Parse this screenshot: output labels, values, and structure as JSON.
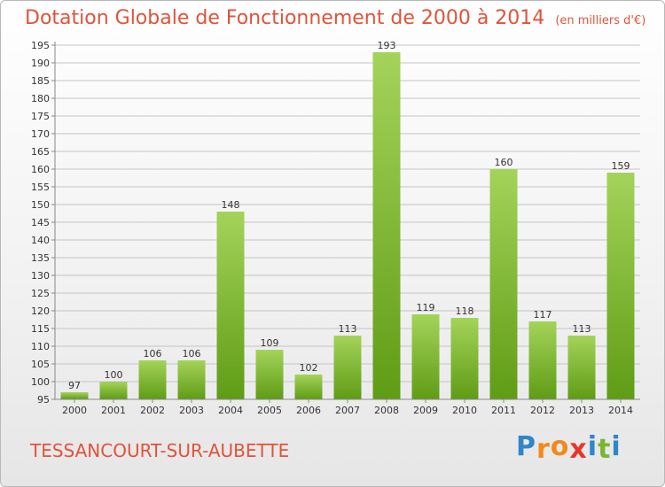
{
  "title": "Dotation Globale de Fonctionnement de 2000 à 2014",
  "unit": "(en milliers d'€)",
  "commune": "TESSANCOURT-SUR-AUBETTE",
  "brand": {
    "letters": [
      "P",
      "r",
      "o",
      "x",
      "i",
      "t",
      "i"
    ],
    "colors": [
      "#2f86c8",
      "#f08a1c",
      "#f08a1c",
      "#e8342b",
      "#2f86c8",
      "#7ab632",
      "#2f86c8"
    ]
  },
  "colors": {
    "title": "#e0533a",
    "bar_light": "#a4d35a",
    "bar_dark": "#5f9c15"
  },
  "chart_data": {
    "type": "bar",
    "categories": [
      "2000",
      "2001",
      "2002",
      "2003",
      "2004",
      "2005",
      "2006",
      "2007",
      "2008",
      "2009",
      "2010",
      "2011",
      "2012",
      "2013",
      "2014"
    ],
    "values": [
      97,
      100,
      106,
      106,
      148,
      109,
      102,
      113,
      193,
      119,
      118,
      160,
      117,
      113,
      159
    ],
    "ylim": [
      95,
      195
    ],
    "yticks": [
      95,
      100,
      105,
      110,
      115,
      120,
      125,
      130,
      135,
      140,
      145,
      150,
      155,
      160,
      165,
      170,
      175,
      180,
      185,
      190,
      195
    ],
    "grid": true
  }
}
